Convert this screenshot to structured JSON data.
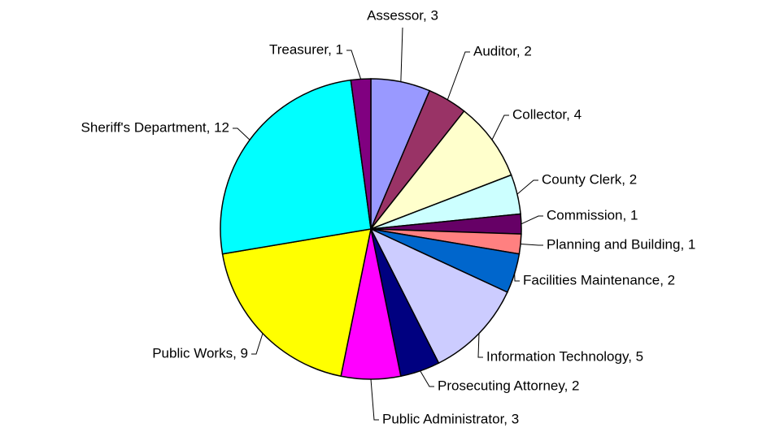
{
  "chart_data": {
    "type": "pie",
    "values": [
      3,
      2,
      4,
      2,
      1,
      1,
      2,
      5,
      2,
      3,
      9,
      12,
      1
    ],
    "value_labels": [
      "Assessor, 3",
      "Auditor, 2",
      "Collector, 4",
      "County Clerk, 2",
      "Commission, 1",
      "Planning and Building, 1",
      "Facilities Maintenance, 2",
      "Information Technology, 5",
      "Prosecuting Attorney, 2",
      "Public Administrator, 3",
      "Public Works, 9",
      "Sheriff's Department, 12",
      "Treasurer, 1"
    ],
    "colors": [
      "#9999ff",
      "#993366",
      "#ffffcc",
      "#ccffff",
      "#660066",
      "#ff8080",
      "#0066cc",
      "#ccccff",
      "#000080",
      "#ff00ff",
      "#ffff00",
      "#00ffff",
      "#800080"
    ]
  }
}
